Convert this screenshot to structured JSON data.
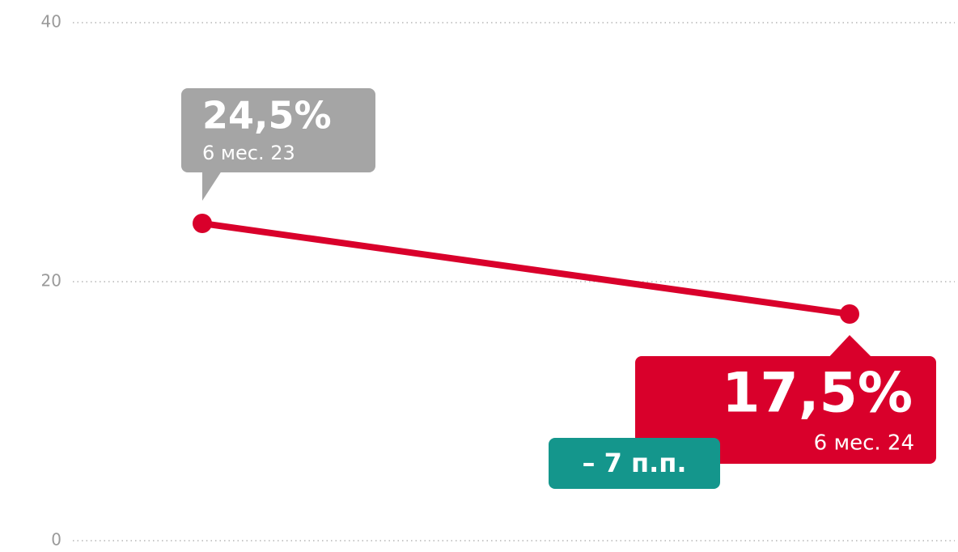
{
  "chart_data": {
    "type": "line",
    "categories": [
      "6 мес. 23",
      "6 мес. 24"
    ],
    "values": [
      24.5,
      17.5
    ],
    "value_labels": [
      "24,5%",
      "17,5%"
    ],
    "color": "#d9002b",
    "callout_colors": [
      "#a5a5a5",
      "#d9002b"
    ],
    "annotation": "– 7 п.п.",
    "annotation_color": "#14968c",
    "ylim": [
      0,
      40
    ],
    "yticks": [
      0,
      20,
      40
    ],
    "grid": true
  }
}
